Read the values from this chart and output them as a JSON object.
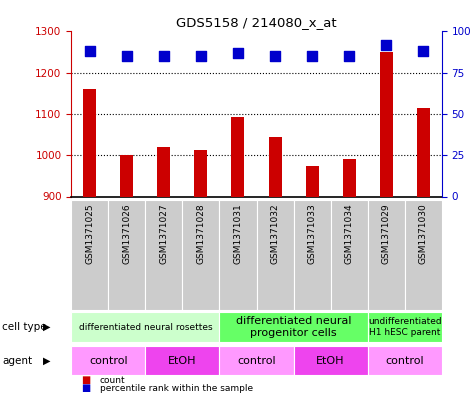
{
  "title": "GDS5158 / 214080_x_at",
  "samples": [
    "GSM1371025",
    "GSM1371026",
    "GSM1371027",
    "GSM1371028",
    "GSM1371031",
    "GSM1371032",
    "GSM1371033",
    "GSM1371034",
    "GSM1371029",
    "GSM1371030"
  ],
  "counts": [
    1160,
    1000,
    1020,
    1013,
    1093,
    1045,
    975,
    990,
    1250,
    1115
  ],
  "percentile_ranks": [
    88,
    85,
    85,
    85,
    87,
    85,
    85,
    85,
    92,
    88
  ],
  "ylim": [
    900,
    1300
  ],
  "yticks": [
    900,
    1000,
    1100,
    1200,
    1300
  ],
  "right_yticks": [
    0,
    25,
    50,
    75,
    100
  ],
  "right_ylim": [
    0,
    100
  ],
  "bar_color": "#CC0000",
  "dot_color": "#0000CC",
  "cell_type_groups": [
    {
      "label": "differentiated neural rosettes",
      "start": 0,
      "end": 3,
      "color": "#CCFFCC",
      "fontsize": 6.5
    },
    {
      "label": "differentiated neural\nprogenitor cells",
      "start": 4,
      "end": 7,
      "color": "#66FF66",
      "fontsize": 8
    },
    {
      "label": "undifferentiated\nH1 hESC parent",
      "start": 8,
      "end": 9,
      "color": "#66FF66",
      "fontsize": 6.5
    }
  ],
  "agent_groups": [
    {
      "label": "control",
      "start": 0,
      "end": 1,
      "color": "#FF99FF"
    },
    {
      "label": "EtOH",
      "start": 2,
      "end": 3,
      "color": "#EE44EE"
    },
    {
      "label": "control",
      "start": 4,
      "end": 5,
      "color": "#FF99FF"
    },
    {
      "label": "EtOH",
      "start": 6,
      "end": 7,
      "color": "#EE44EE"
    },
    {
      "label": "control",
      "start": 8,
      "end": 9,
      "color": "#FF99FF"
    }
  ],
  "cell_type_label": "cell type",
  "agent_label": "agent",
  "legend_count_label": "count",
  "legend_percentile_label": "percentile rank within the sample",
  "bar_width": 0.35,
  "dot_size": 50,
  "left_axis_color": "#CC0000",
  "right_axis_color": "#0000CC",
  "sample_box_color": "#CCCCCC",
  "grid_yticks": [
    1000,
    1100,
    1200
  ]
}
